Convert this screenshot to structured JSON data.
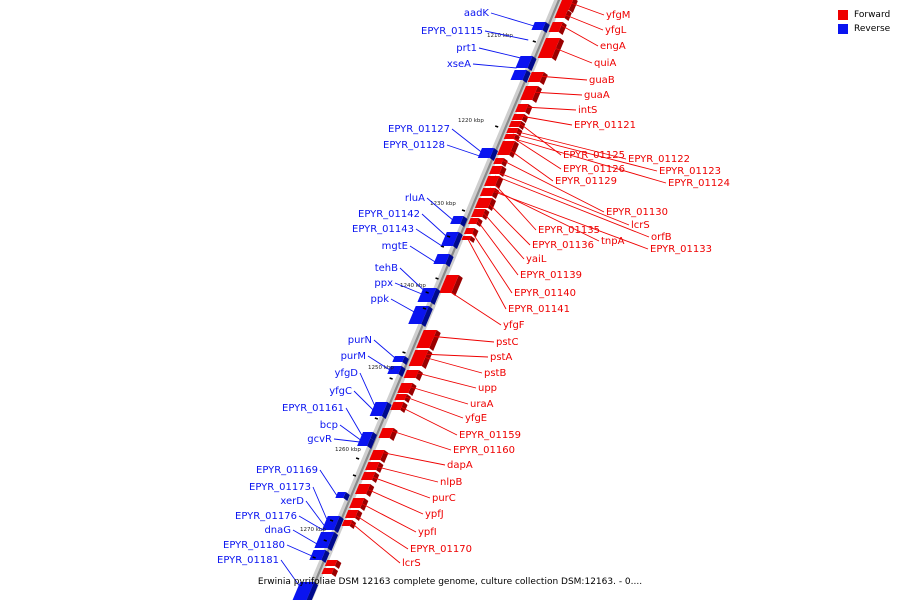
{
  "legend": [
    {
      "label": "Forward",
      "color": "#ee0000"
    },
    {
      "label": "Reverse",
      "color": "#0a14f0"
    }
  ],
  "caption": "Erwinia pyrifoliae DSM 12163 complete genome, culture collection DSM:12163. - 0....",
  "scale_labels": [
    "1210 kbp",
    "1220 kbp",
    "1230 kbp",
    "1240 kbp",
    "1250 kbp",
    "1260 kbp",
    "1270 kbp"
  ],
  "forward_genes": [
    "yfgM",
    "yfgL",
    "engA",
    "quiA",
    "guaB",
    "guaA",
    "intS",
    "EPYR_01121",
    "EPYR_01125",
    "EPYR_01122",
    "EPYR_01126",
    "EPYR_01123",
    "EPYR_01129",
    "EPYR_01124",
    "EPYR_01130",
    "lcrS",
    "EPYR_01135",
    "orfB",
    "tnpA",
    "EPYR_01136",
    "EPYR_01133",
    "yaiL",
    "EPYR_01139",
    "EPYR_01140",
    "EPYR_01141",
    "yfgF",
    "pstC",
    "pstA",
    "pstB",
    "upp",
    "uraA",
    "yfgE",
    "EPYR_01159",
    "EPYR_01160",
    "dapA",
    "nlpB",
    "purC",
    "ypfJ",
    "ypfI",
    "EPYR_01170",
    "lcrS"
  ],
  "reverse_genes": [
    "aadK",
    "EPYR_01115",
    "prt1",
    "xseA",
    "EPYR_01127",
    "EPYR_01128",
    "rluA",
    "EPYR_01142",
    "EPYR_01143",
    "mgtE",
    "tehB",
    "ppx",
    "ppk",
    "purN",
    "purM",
    "yfgD",
    "yfgC",
    "EPYR_01161",
    "bcp",
    "gcvR",
    "EPYR_01169",
    "EPYR_01173",
    "xerD",
    "EPYR_01176",
    "dnaG",
    "EPYR_01180",
    "EPYR_01181"
  ]
}
